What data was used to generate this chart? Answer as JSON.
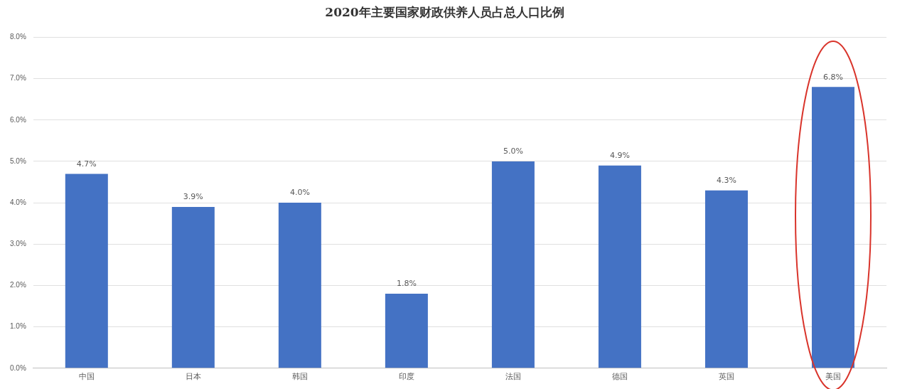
{
  "chart_data": {
    "type": "bar",
    "title": "2020年主要国家财政供养人员占总人口比例",
    "categories": [
      "中国",
      "日本",
      "韩国",
      "印度",
      "法国",
      "德国",
      "英国",
      "美国"
    ],
    "values": [
      4.7,
      3.9,
      4.0,
      1.8,
      5.0,
      4.9,
      4.3,
      6.8
    ],
    "value_labels": [
      "4.7%",
      "3.9%",
      "4.0%",
      "1.8%",
      "5.0%",
      "4.9%",
      "4.3%",
      "6.8%"
    ],
    "color": "#4472c4",
    "ylim": [
      0,
      8
    ],
    "yticks": [
      {
        "value": 0,
        "label": "0.0%"
      },
      {
        "value": 1,
        "label": "1.0%"
      },
      {
        "value": 2,
        "label": "2.0%"
      },
      {
        "value": 3,
        "label": "3.0%"
      },
      {
        "value": 4,
        "label": "4.0%"
      },
      {
        "value": 5,
        "label": "5.0%"
      },
      {
        "value": 6,
        "label": "6.0%"
      },
      {
        "value": 7,
        "label": "7.0%"
      },
      {
        "value": 8,
        "label": "8.0%"
      }
    ],
    "grid": "y",
    "legend": false
  }
}
